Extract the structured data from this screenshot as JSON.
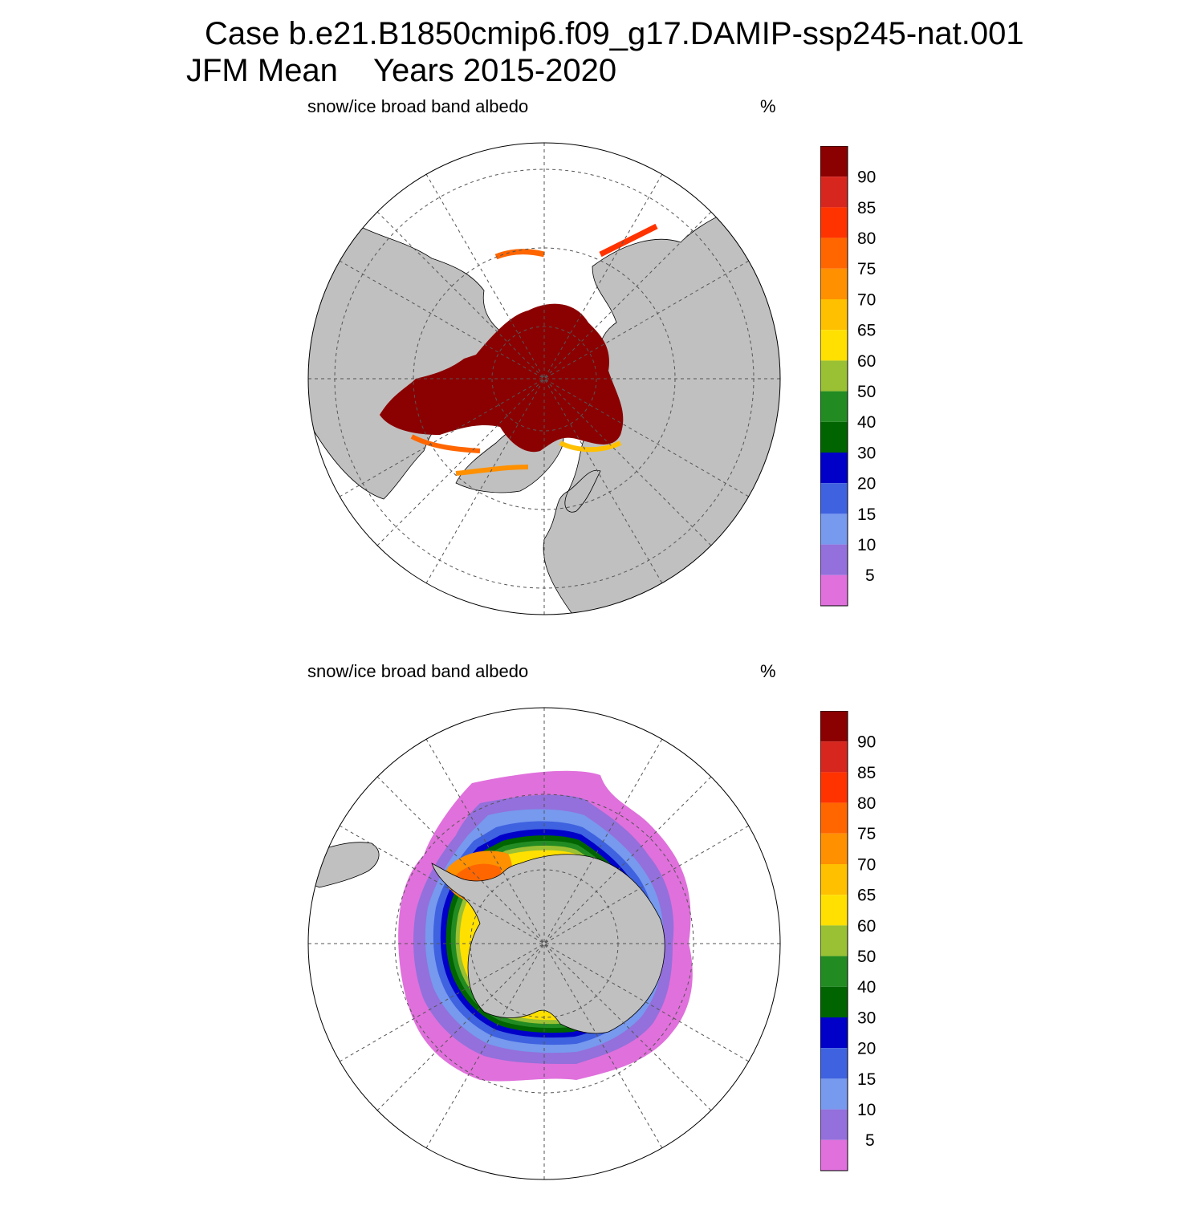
{
  "header": {
    "case_line": "Case b.e21.B1850cmip6.f09_g17.DAMIP-ssp245-nat.001",
    "season": "JFM Mean",
    "years": "Years 2015-2020"
  },
  "panels": [
    {
      "id": "north",
      "title": "snow/ice broad band albedo",
      "units": "%",
      "hemisphere": "Northern"
    },
    {
      "id": "south",
      "title": "snow/ice broad band albedo",
      "units": "%",
      "hemisphere": "Southern"
    }
  ],
  "colorbar": {
    "levels": [
      "90",
      "85",
      "80",
      "75",
      "70",
      "65",
      "60",
      "50",
      "40",
      "30",
      "20",
      "15",
      "10",
      "5"
    ],
    "colors": [
      "#8b0000",
      "#d7261e",
      "#ff3300",
      "#ff6600",
      "#ff9000",
      "#ffc000",
      "#ffe000",
      "#9ac033",
      "#228b22",
      "#006400",
      "#0000c8",
      "#3f62e0",
      "#7799ee",
      "#9370db",
      "#e070dc"
    ]
  },
  "map_style": {
    "land_color": "#c0c0c0",
    "ocean_color": "#ffffff",
    "grid_style": "dashed"
  }
}
